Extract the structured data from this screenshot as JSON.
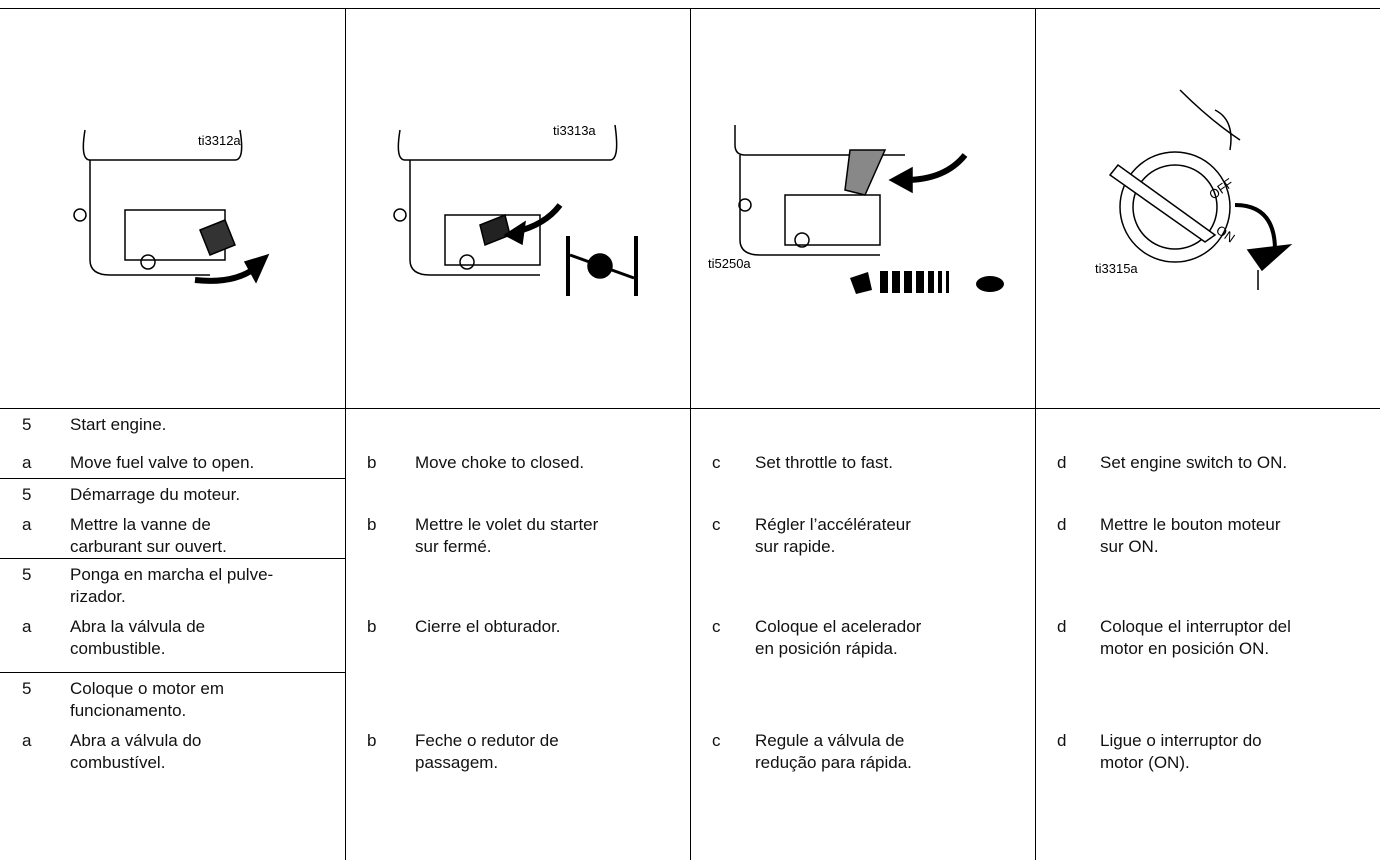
{
  "illustrations": [
    {
      "label": "ti3312a"
    },
    {
      "label": "ti3313a"
    },
    {
      "label": "ti5250a"
    },
    {
      "label": "ti3315a"
    }
  ],
  "languages": [
    {
      "step_number": "5",
      "step_text": [
        "Start engine."
      ],
      "substeps": [
        {
          "letter": "a",
          "text": [
            "Move fuel valve to open."
          ]
        },
        {
          "letter": "b",
          "text": [
            "Move choke to closed."
          ]
        },
        {
          "letter": "c",
          "text": [
            "Set throttle to fast."
          ]
        },
        {
          "letter": "d",
          "text": [
            "Set engine switch to ON."
          ]
        }
      ]
    },
    {
      "step_number": "5",
      "step_text": [
        "Démarrage du moteur."
      ],
      "substeps": [
        {
          "letter": "a",
          "text": [
            "Mettre la vanne de",
            "carburant sur ouvert."
          ]
        },
        {
          "letter": "b",
          "text": [
            "Mettre le volet du starter",
            "sur fermé."
          ]
        },
        {
          "letter": "c",
          "text": [
            "Régler l’accélérateur",
            "sur rapide."
          ]
        },
        {
          "letter": "d",
          "text": [
            "Mettre le bouton moteur",
            "sur ON."
          ]
        }
      ]
    },
    {
      "step_number": "5",
      "step_text": [
        "Ponga en marcha el pulve-",
        "rizador."
      ],
      "substeps": [
        {
          "letter": "a",
          "text": [
            "Abra la válvula de",
            "combustible."
          ]
        },
        {
          "letter": "b",
          "text": [
            "Cierre el obturador."
          ]
        },
        {
          "letter": "c",
          "text": [
            "Coloque el acelerador",
            "en posición rápida."
          ]
        },
        {
          "letter": "d",
          "text": [
            "Coloque el interruptor del",
            "motor en posición ON."
          ]
        }
      ]
    },
    {
      "step_number": "5",
      "step_text": [
        "Coloque o motor em",
        "funcionamento."
      ],
      "substeps": [
        {
          "letter": "a",
          "text": [
            "Abra a válvula do",
            "combustível."
          ]
        },
        {
          "letter": "b",
          "text": [
            "Feche o redutor de",
            "passagem."
          ]
        },
        {
          "letter": "c",
          "text": [
            "Regule a válvula de",
            "redução para rápida."
          ]
        },
        {
          "letter": "d",
          "text": [
            "Ligue o interruptor do",
            "motor (ON)."
          ]
        }
      ]
    }
  ]
}
